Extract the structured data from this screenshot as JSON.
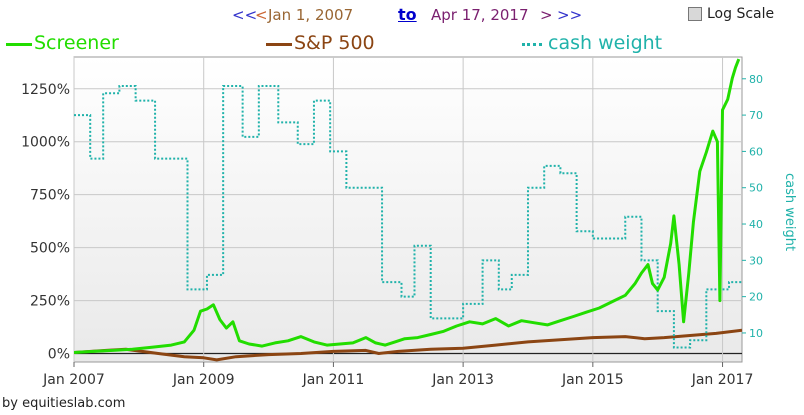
{
  "header": {
    "prev_fast": "<<",
    "prev": "<",
    "start_date": "Jan 1, 2007",
    "to_label": "to",
    "end_date": "Apr 17, 2017",
    "next": ">",
    "next_fast": ">>",
    "log_scale_label": "Log Scale"
  },
  "footer": {
    "credit": "by equitieslab.com"
  },
  "colors": {
    "screener": "#22dd00",
    "sp500": "#8b4513",
    "cash": "#20b2aa"
  },
  "chart_data": {
    "type": "line",
    "x_ticks": [
      "Jan 2007",
      "Jan 2009",
      "Jan 2011",
      "Jan 2013",
      "Jan 2015",
      "Jan 2017"
    ],
    "y_ticks": [
      "0%",
      "250%",
      "500%",
      "750%",
      "1000%",
      "1250%"
    ],
    "y2_ticks": [
      "10",
      "20",
      "30",
      "40",
      "50",
      "60",
      "70",
      "80"
    ],
    "y2label": "cash weight",
    "ylim": [
      -40,
      1400
    ],
    "y2lim": [
      2,
      86
    ],
    "xlim": [
      2007.0,
      2017.3
    ],
    "log_scale": false,
    "grid": true,
    "legend_position": "top",
    "series": [
      {
        "name": "Screener",
        "axis": "left",
        "points": [
          [
            2007.0,
            5
          ],
          [
            2007.3,
            10
          ],
          [
            2007.6,
            15
          ],
          [
            2007.9,
            20
          ],
          [
            2008.2,
            30
          ],
          [
            2008.5,
            40
          ],
          [
            2008.7,
            55
          ],
          [
            2008.85,
            110
          ],
          [
            2008.95,
            200
          ],
          [
            2009.05,
            210
          ],
          [
            2009.15,
            230
          ],
          [
            2009.25,
            160
          ],
          [
            2009.35,
            120
          ],
          [
            2009.45,
            150
          ],
          [
            2009.55,
            60
          ],
          [
            2009.7,
            45
          ],
          [
            2009.9,
            35
          ],
          [
            2010.1,
            50
          ],
          [
            2010.3,
            60
          ],
          [
            2010.5,
            80
          ],
          [
            2010.7,
            55
          ],
          [
            2010.9,
            40
          ],
          [
            2011.1,
            45
          ],
          [
            2011.3,
            50
          ],
          [
            2011.5,
            75
          ],
          [
            2011.65,
            50
          ],
          [
            2011.8,
            40
          ],
          [
            2011.95,
            55
          ],
          [
            2012.1,
            70
          ],
          [
            2012.3,
            75
          ],
          [
            2012.5,
            90
          ],
          [
            2012.7,
            105
          ],
          [
            2012.9,
            130
          ],
          [
            2013.1,
            150
          ],
          [
            2013.3,
            140
          ],
          [
            2013.5,
            165
          ],
          [
            2013.7,
            130
          ],
          [
            2013.9,
            155
          ],
          [
            2014.1,
            145
          ],
          [
            2014.3,
            135
          ],
          [
            2014.5,
            155
          ],
          [
            2014.7,
            175
          ],
          [
            2014.9,
            195
          ],
          [
            2015.1,
            215
          ],
          [
            2015.3,
            245
          ],
          [
            2015.5,
            275
          ],
          [
            2015.65,
            330
          ],
          [
            2015.75,
            380
          ],
          [
            2015.85,
            420
          ],
          [
            2015.92,
            330
          ],
          [
            2016.0,
            300
          ],
          [
            2016.1,
            360
          ],
          [
            2016.2,
            520
          ],
          [
            2016.25,
            650
          ],
          [
            2016.33,
            420
          ],
          [
            2016.4,
            150
          ],
          [
            2016.48,
            380
          ],
          [
            2016.55,
            620
          ],
          [
            2016.65,
            860
          ],
          [
            2016.75,
            950
          ],
          [
            2016.85,
            1050
          ],
          [
            2016.92,
            1000
          ],
          [
            2016.96,
            250
          ],
          [
            2017.0,
            1150
          ],
          [
            2017.08,
            1200
          ],
          [
            2017.15,
            1300
          ],
          [
            2017.2,
            1350
          ],
          [
            2017.25,
            1390
          ]
        ]
      },
      {
        "name": "S&P 500",
        "axis": "left",
        "points": [
          [
            2007.0,
            5
          ],
          [
            2007.5,
            15
          ],
          [
            2007.8,
            20
          ],
          [
            2008.3,
            0
          ],
          [
            2008.7,
            -15
          ],
          [
            2009.0,
            -20
          ],
          [
            2009.2,
            -30
          ],
          [
            2009.5,
            -15
          ],
          [
            2010.0,
            -5
          ],
          [
            2010.5,
            0
          ],
          [
            2011.0,
            10
          ],
          [
            2011.5,
            15
          ],
          [
            2011.7,
            0
          ],
          [
            2012.0,
            10
          ],
          [
            2012.5,
            20
          ],
          [
            2013.0,
            25
          ],
          [
            2013.5,
            40
          ],
          [
            2014.0,
            55
          ],
          [
            2014.5,
            65
          ],
          [
            2015.0,
            75
          ],
          [
            2015.5,
            80
          ],
          [
            2015.8,
            70
          ],
          [
            2016.1,
            75
          ],
          [
            2016.5,
            85
          ],
          [
            2016.9,
            95
          ],
          [
            2017.3,
            110
          ]
        ]
      },
      {
        "name": "cash weight",
        "axis": "right",
        "steps": [
          [
            2007.0,
            70
          ],
          [
            2007.25,
            58
          ],
          [
            2007.45,
            76
          ],
          [
            2007.7,
            78
          ],
          [
            2007.95,
            74
          ],
          [
            2008.25,
            58
          ],
          [
            2008.75,
            22
          ],
          [
            2009.05,
            26
          ],
          [
            2009.3,
            78
          ],
          [
            2009.6,
            64
          ],
          [
            2009.85,
            78
          ],
          [
            2010.15,
            68
          ],
          [
            2010.45,
            62
          ],
          [
            2010.7,
            74
          ],
          [
            2010.95,
            60
          ],
          [
            2011.2,
            50
          ],
          [
            2011.75,
            24
          ],
          [
            2012.05,
            20
          ],
          [
            2012.25,
            34
          ],
          [
            2012.5,
            14
          ],
          [
            2012.75,
            14
          ],
          [
            2013.0,
            18
          ],
          [
            2013.3,
            30
          ],
          [
            2013.55,
            22
          ],
          [
            2013.75,
            26
          ],
          [
            2014.0,
            50
          ],
          [
            2014.25,
            56
          ],
          [
            2014.5,
            54
          ],
          [
            2014.75,
            38
          ],
          [
            2015.0,
            36
          ],
          [
            2015.5,
            42
          ],
          [
            2015.75,
            30
          ],
          [
            2016.0,
            16
          ],
          [
            2016.25,
            6
          ],
          [
            2016.5,
            8
          ],
          [
            2016.75,
            22
          ],
          [
            2017.0,
            22
          ],
          [
            2017.1,
            24
          ],
          [
            2017.3,
            24
          ]
        ]
      }
    ]
  }
}
